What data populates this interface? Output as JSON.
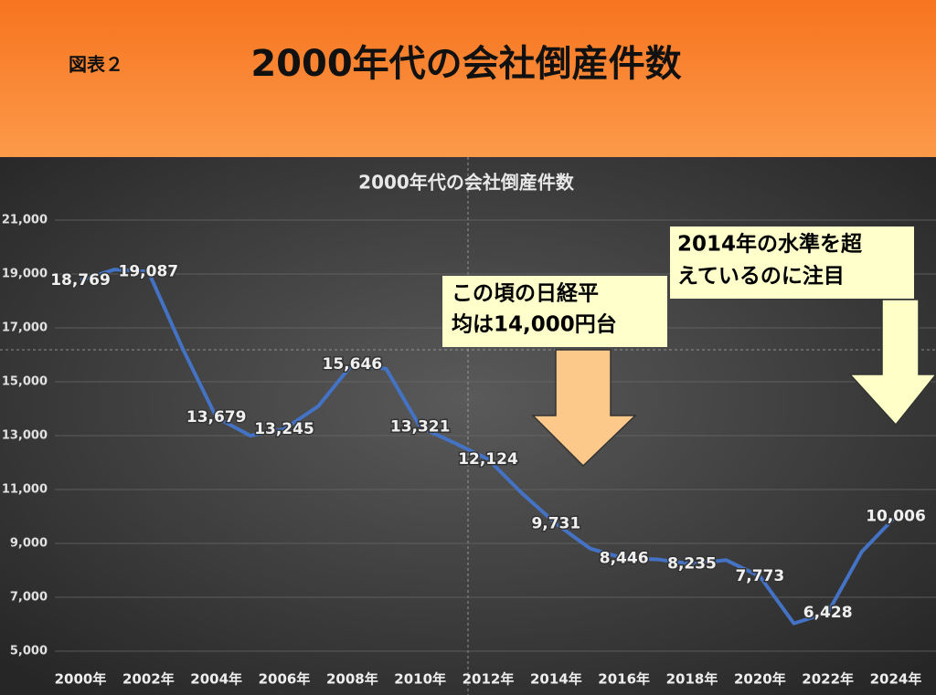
{
  "header": {
    "label": "図表２",
    "title": "2000年代の会社倒産件数"
  },
  "chart_data": {
    "type": "line",
    "title": "2000年代の会社倒産件数",
    "categories": [
      "2000年",
      null,
      "2002年",
      null,
      "2004年",
      null,
      "2006年",
      null,
      "2008年",
      null,
      "2010年",
      null,
      "2012年",
      null,
      "2014年",
      null,
      "2016年",
      null,
      "2018年",
      null,
      "2020年",
      null,
      "2022年",
      null,
      "2024年"
    ],
    "values": [
      18769,
      19164,
      19087,
      16255,
      13679,
      12998,
      13245,
      14091,
      15646,
      15480,
      13321,
      12734,
      12124,
      10855,
      9731,
      8812,
      8446,
      8405,
      8235,
      8383,
      7773,
      6030,
      6428,
      8690,
      10006
    ],
    "value_labels": [
      "18,769",
      null,
      "19,087",
      null,
      "13,679",
      null,
      "13,245",
      null,
      "15,646",
      null,
      "13,321",
      null,
      "12,124",
      null,
      "9,731",
      null,
      "8,446",
      null,
      "8,235",
      null,
      "7,773",
      null,
      "6,428",
      null,
      "10,006"
    ],
    "color": "#4472c4",
    "ylim": [
      5000,
      21000
    ],
    "yticks": [
      {
        "value": 5000,
        "label": "5,000"
      },
      {
        "value": 7000,
        "label": "7,000"
      },
      {
        "value": 9000,
        "label": "9,000"
      },
      {
        "value": 11000,
        "label": "11,000"
      },
      {
        "value": 13000,
        "label": "13,000"
      },
      {
        "value": 15000,
        "label": "15,000"
      },
      {
        "value": 17000,
        "label": "17,000"
      },
      {
        "value": 19000,
        "label": "19,000"
      },
      {
        "value": 21000,
        "label": "21,000"
      }
    ],
    "grid": true,
    "annotations": [
      [
        "この頃の日経平",
        "均は14,000円台"
      ],
      [
        "2014年の水準を超",
        "えているのに注目"
      ]
    ]
  }
}
